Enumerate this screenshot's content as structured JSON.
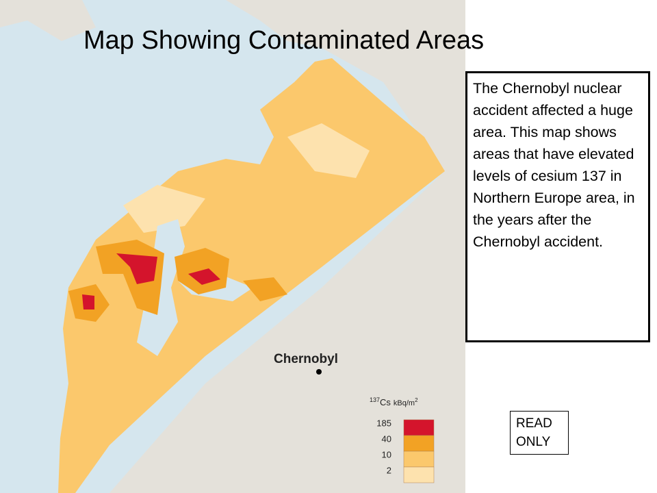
{
  "title": "Map Showing Contaminated Areas",
  "description": "The Chernobyl nuclear accident affected a huge area. This map shows areas that have elevated levels of cesium 137 in Northern Europe area, in the years after the Chernobyl accident.",
  "map": {
    "place_label": "Chernobyl",
    "legend": {
      "isotope_mass": "137",
      "symbol": "Cs",
      "unit": "kBq/m",
      "unit_exponent": "2",
      "levels": [
        {
          "value": 185,
          "color": "#d4142c"
        },
        {
          "value": 40,
          "color": "#f2a224"
        },
        {
          "value": 10,
          "color": "#fbc86c"
        },
        {
          "value": 2,
          "color": "#fde2ae"
        }
      ]
    }
  },
  "badge": {
    "line1": "READ",
    "line2": "ONLY"
  }
}
